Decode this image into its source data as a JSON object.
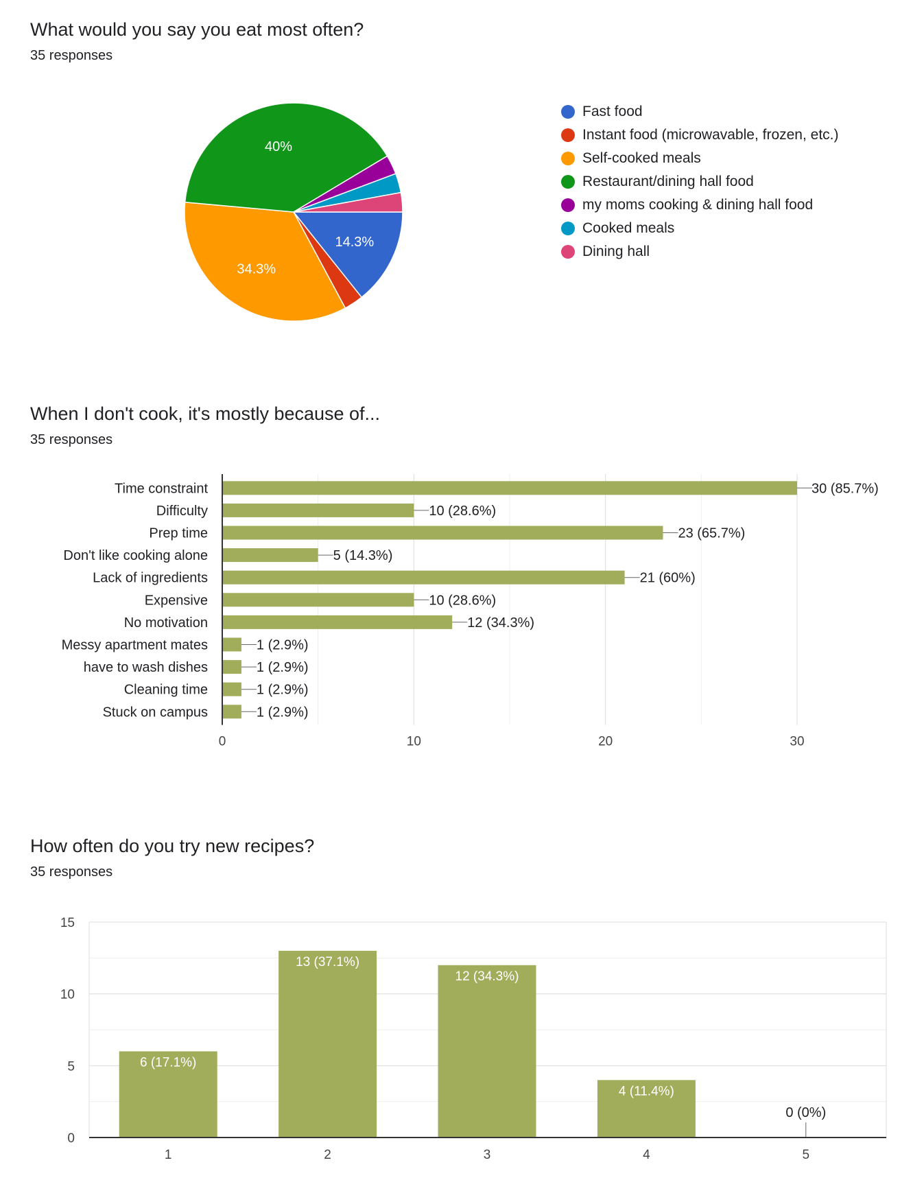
{
  "charts": [
    {
      "title": "What would you say you eat most often?",
      "subtitle": "35 responses"
    },
    {
      "title": "When I don't cook, it's mostly because of...",
      "subtitle": "35 responses"
    },
    {
      "title": "How often do you try new recipes?",
      "subtitle": "35 responses"
    }
  ],
  "chart_data": [
    {
      "type": "pie",
      "title": "What would you say you eat most often?",
      "subtitle": "35 responses",
      "total": 35,
      "slices": [
        {
          "label": "Fast food",
          "value": 5,
          "percent_label": "14.3%",
          "color": "#3366cc"
        },
        {
          "label": "Instant food (microwavable, frozen, etc.)",
          "value": 1,
          "percent_label": "",
          "color": "#dc3912"
        },
        {
          "label": "Self-cooked meals",
          "value": 12,
          "percent_label": "34.3%",
          "color": "#ff9900"
        },
        {
          "label": "Restaurant/dining hall food",
          "value": 14,
          "percent_label": "40%",
          "color": "#109618"
        },
        {
          "label": "my moms cooking & dining hall food",
          "value": 1,
          "percent_label": "",
          "color": "#990099"
        },
        {
          "label": "Cooked meals",
          "value": 1,
          "percent_label": "",
          "color": "#0099c6"
        },
        {
          "label": "Dining hall",
          "value": 1,
          "percent_label": "",
          "color": "#dd4477"
        }
      ],
      "legend_position": "right"
    },
    {
      "type": "bar",
      "orientation": "horizontal",
      "title": "When I don't cook, it's mostly because of...",
      "subtitle": "35 responses",
      "categories": [
        "Time constraint",
        "Difficulty",
        "Prep time",
        "Don't like cooking alone",
        "Lack of ingredients",
        "Expensive",
        "No motivation",
        "Messy apartment mates",
        "have to wash dishes",
        "Cleaning time",
        "Stuck on campus"
      ],
      "values": [
        30,
        10,
        23,
        5,
        21,
        10,
        12,
        1,
        1,
        1,
        1
      ],
      "data_labels": [
        "30 (85.7%)",
        "10 (28.6%)",
        "23 (65.7%)",
        "5 (14.3%)",
        "21 (60%)",
        "10 (28.6%)",
        "12 (34.3%)",
        "1 (2.9%)",
        "1 (2.9%)",
        "1 (2.9%)",
        "1 (2.9%)"
      ],
      "xlim": [
        0,
        30
      ],
      "x_ticks": [
        0,
        10,
        20,
        30
      ],
      "grid": true,
      "bar_color": "#a2ad5b"
    },
    {
      "type": "bar",
      "orientation": "vertical",
      "title": "How often do you try new recipes?",
      "subtitle": "35 responses",
      "categories": [
        "1",
        "2",
        "3",
        "4",
        "5"
      ],
      "values": [
        6,
        13,
        12,
        4,
        0
      ],
      "data_labels": [
        "6 (17.1%)",
        "13 (37.1%)",
        "12 (34.3%)",
        "4 (11.4%)",
        "0 (0%)"
      ],
      "ylim": [
        0,
        15
      ],
      "y_ticks": [
        0,
        5,
        10,
        15
      ],
      "grid": true,
      "bar_color": "#a2ad5b"
    }
  ]
}
